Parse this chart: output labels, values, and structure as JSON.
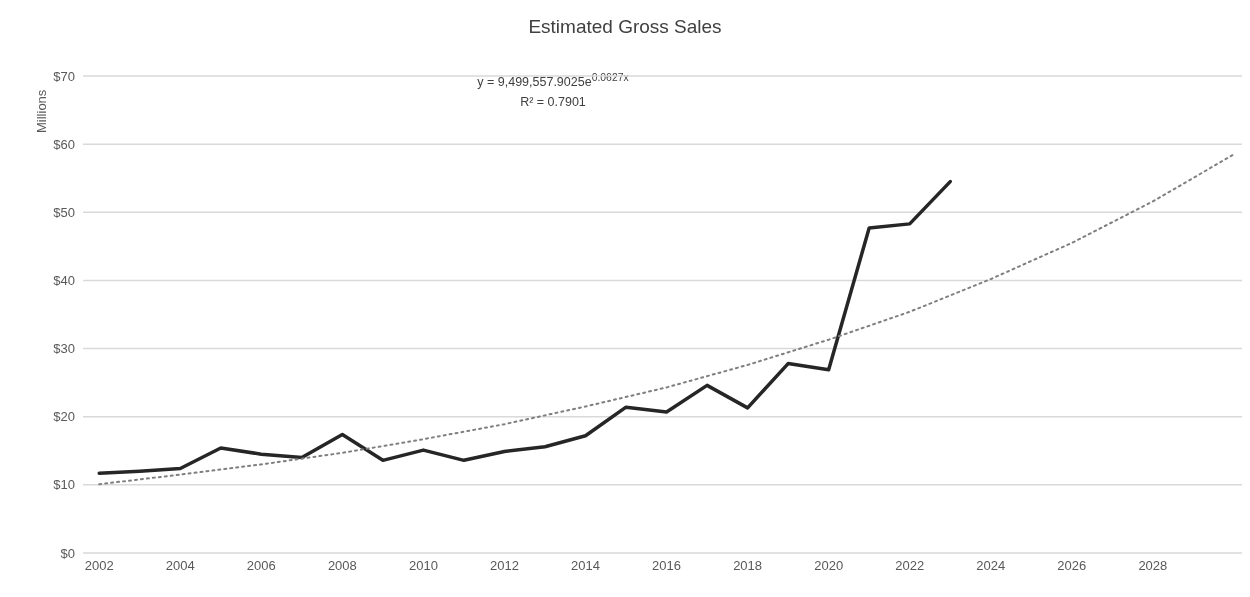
{
  "chart_data": {
    "type": "line",
    "title": "Estimated Gross Sales",
    "ylabel": "Millions",
    "annotations": [
      "y = 9,499,557.9025e$^{0.0627x}$",
      "R² = 0.7901"
    ],
    "xlim": [
      2001.6,
      2030.2
    ],
    "xticks": [
      2002,
      2004,
      2006,
      2008,
      2010,
      2012,
      2014,
      2016,
      2018,
      2020,
      2022,
      2024,
      2026,
      2028
    ],
    "ylim": [
      0,
      70
    ],
    "yticks": [
      {
        "value": 0,
        "label": "$0"
      },
      {
        "value": 10,
        "label": "$10"
      },
      {
        "value": 20,
        "label": "$20"
      },
      {
        "value": 30,
        "label": "$30"
      },
      {
        "value": 40,
        "label": "$40"
      },
      {
        "value": 50,
        "label": "$50"
      },
      {
        "value": 60,
        "label": "$60"
      },
      {
        "value": 70,
        "label": "$70"
      }
    ],
    "grid": "y",
    "legend": false,
    "marker": "none",
    "series": [
      {
        "color": "#262626",
        "line_style": "solid",
        "x": [
          2002,
          2003,
          2004,
          2005,
          2006,
          2007,
          2008,
          2009,
          2010,
          2011,
          2012,
          2013,
          2014,
          2015,
          2016,
          2017,
          2018,
          2019,
          2020,
          2021,
          2022,
          2023
        ],
        "values": [
          11.7,
          12.0,
          12.4,
          15.4,
          14.5,
          14.0,
          17.4,
          13.6,
          15.1,
          13.6,
          14.9,
          15.6,
          17.2,
          21.4,
          20.7,
          24.6,
          21.3,
          27.8,
          26.9,
          47.7,
          48.3,
          54.5
        ]
      },
      {
        "color": "#7f7f7f",
        "line_style": "dotted",
        "x": [
          2002,
          2004,
          2006,
          2008,
          2010,
          2012,
          2014,
          2016,
          2018,
          2020,
          2022,
          2024,
          2026,
          2028,
          2030
        ],
        "values": [
          10.1,
          11.5,
          13.0,
          14.7,
          16.7,
          18.9,
          21.5,
          24.3,
          27.6,
          31.3,
          35.4,
          40.2,
          45.5,
          51.6,
          58.5
        ]
      }
    ]
  }
}
